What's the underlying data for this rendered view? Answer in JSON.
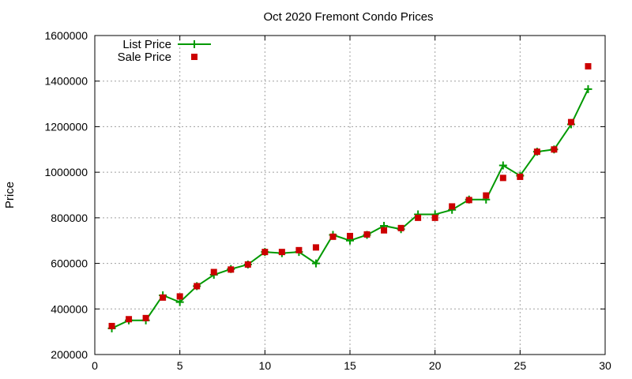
{
  "chart_data": {
    "type": "line",
    "title": "Oct 2020 Fremont Condo Prices",
    "xlabel": "",
    "ylabel": "Price",
    "xlim": [
      0,
      30
    ],
    "ylim": [
      200000,
      1600000
    ],
    "xticks": [
      0,
      5,
      10,
      15,
      20,
      25,
      30
    ],
    "yticks": [
      200000,
      400000,
      600000,
      800000,
      1000000,
      1200000,
      1400000,
      1600000
    ],
    "grid": true,
    "legend_position": "top-left",
    "series": [
      {
        "name": "List Price",
        "style": "line+plus",
        "color": "#009900",
        "x": [
          1,
          2,
          3,
          4,
          5,
          6,
          7,
          8,
          9,
          10,
          11,
          12,
          13,
          14,
          15,
          16,
          17,
          18,
          19,
          20,
          21,
          22,
          23,
          24,
          25,
          26,
          27,
          28,
          29
        ],
        "y": [
          315000,
          350000,
          350000,
          460000,
          430000,
          500000,
          550000,
          575000,
          595000,
          650000,
          645000,
          650000,
          600000,
          725000,
          700000,
          725000,
          765000,
          750000,
          815000,
          815000,
          835000,
          880000,
          880000,
          1030000,
          985000,
          1090000,
          1100000,
          1210000,
          1365000
        ]
      },
      {
        "name": "Sale Price",
        "style": "square",
        "color": "#cc0000",
        "x": [
          1,
          2,
          3,
          4,
          5,
          6,
          7,
          8,
          9,
          10,
          11,
          12,
          13,
          14,
          15,
          16,
          17,
          18,
          19,
          20,
          21,
          22,
          23,
          24,
          25,
          26,
          27,
          28,
          29
        ],
        "y": [
          325000,
          355000,
          360000,
          450000,
          455000,
          500000,
          562000,
          573000,
          595000,
          650000,
          650000,
          658000,
          670000,
          717000,
          720000,
          727000,
          745000,
          755000,
          800000,
          800000,
          850000,
          878000,
          898000,
          975000,
          980000,
          1090000,
          1100000,
          1220000,
          1465000
        ]
      }
    ]
  }
}
